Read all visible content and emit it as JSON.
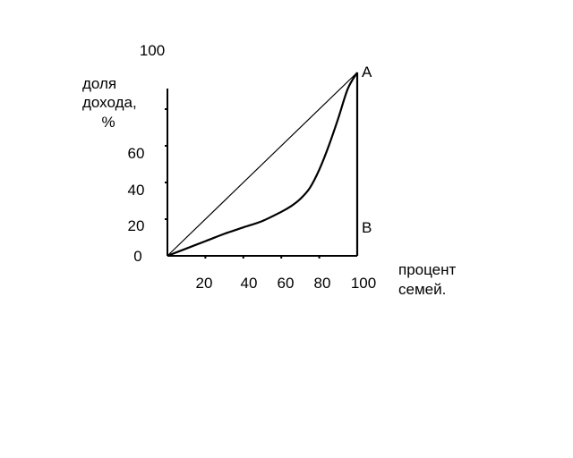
{
  "chart_data": {
    "type": "line",
    "title": "",
    "ylabel_lines": [
      "доля",
      "дохода,",
      "%"
    ],
    "xlabel_lines": [
      "процент",
      "семей."
    ],
    "y_top_label": "100",
    "y_tick_labels": [
      {
        "value": 0,
        "label": "0"
      },
      {
        "value": 20,
        "label": "20"
      },
      {
        "value": 40,
        "label": "40"
      },
      {
        "value": 60,
        "label": "60"
      }
    ],
    "x_tick_labels": [
      {
        "value": 20,
        "label": "20"
      },
      {
        "value": 40,
        "label": "40"
      },
      {
        "value": 60,
        "label": "60"
      },
      {
        "value": 80,
        "label": "80"
      },
      {
        "value": 100,
        "label": "100"
      }
    ],
    "xlim": [
      0,
      100
    ],
    "ylim": [
      0,
      100
    ],
    "y_tick_marks": [
      20,
      40,
      60,
      80
    ],
    "x_tick_marks": [
      20,
      40,
      60,
      80
    ],
    "grid": false,
    "point_labels": [
      {
        "label": "A",
        "x": 100,
        "y": 100
      },
      {
        "label": "B",
        "x": 100,
        "y": 16
      }
    ],
    "series": [
      {
        "style": "thin",
        "x": [
          0,
          100
        ],
        "y": [
          0,
          100
        ]
      },
      {
        "style": "thick",
        "x": [
          0,
          10,
          20,
          30,
          40,
          50,
          60,
          65,
          70,
          75,
          80,
          85,
          90,
          95,
          100
        ],
        "y": [
          0,
          4,
          8,
          12,
          15.5,
          19,
          24,
          27,
          31,
          37,
          47,
          60,
          75,
          91,
          100
        ]
      }
    ],
    "vertical_line": {
      "x": 100,
      "y_from": 0,
      "y_to": 100
    }
  }
}
